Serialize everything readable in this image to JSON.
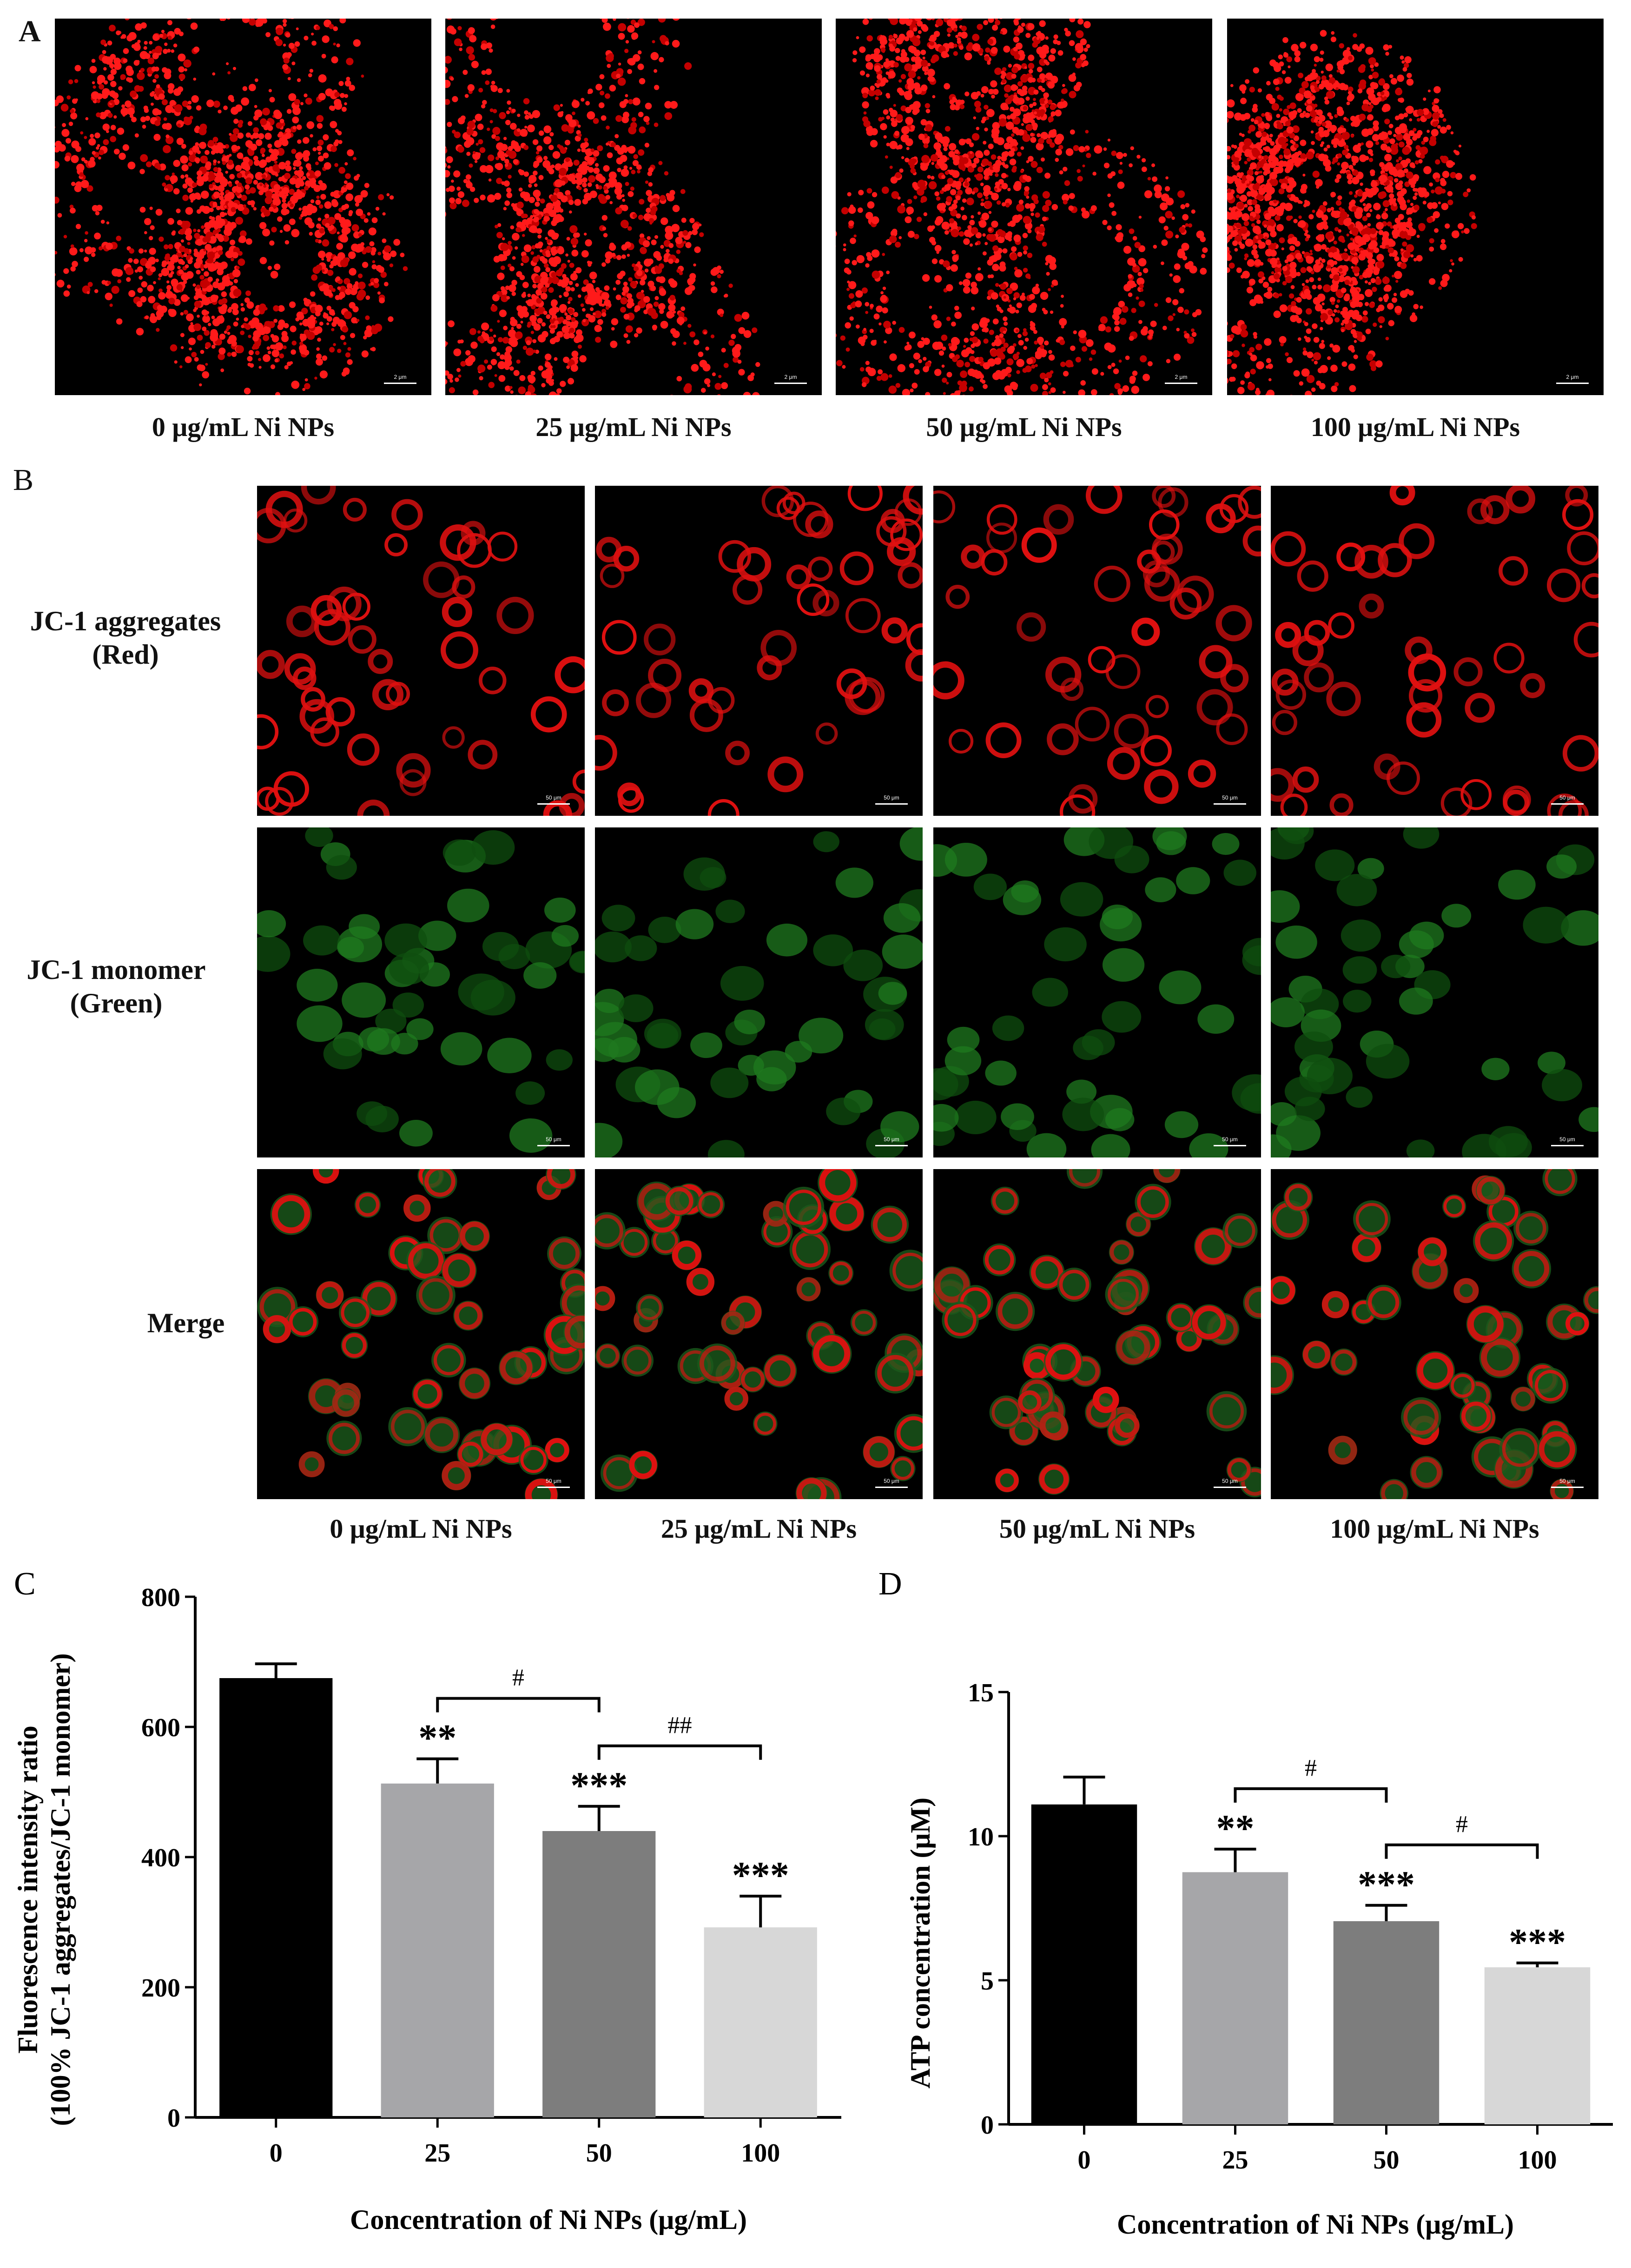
{
  "panel_A": {
    "letter": "A",
    "captions": [
      "0 μg/mL Ni NPs",
      "25 μg/mL Ni NPs",
      "50 μg/mL Ni NPs",
      "100 μg/mL Ni NPs"
    ],
    "scale_label": "2 μm"
  },
  "panel_B": {
    "letter": "B",
    "rows": [
      {
        "line1": "JC-1 aggregates",
        "line2": "(Red)"
      },
      {
        "line1": "JC-1 monomer",
        "line2": "(Green)"
      },
      {
        "line1": "Merge",
        "line2": ""
      }
    ],
    "captions": [
      "0 μg/mL Ni NPs",
      "25 μg/mL Ni NPs",
      "50 μg/mL Ni NPs",
      "100 μg/mL Ni NPs"
    ],
    "scale_label": "50 μm"
  },
  "chart_data": [
    {
      "panel": "C",
      "type": "bar",
      "categories": [
        "0",
        "25",
        "50",
        "100"
      ],
      "values": [
        675,
        513,
        440,
        292
      ],
      "errors": [
        22,
        38,
        38,
        48
      ],
      "significance": [
        "",
        "**",
        "***",
        "***"
      ],
      "brackets": [
        {
          "from": "25",
          "to": "50",
          "label": "#"
        },
        {
          "from": "50",
          "to": "100",
          "label": "##"
        }
      ],
      "colors": [
        "#000000",
        "#a6a6a9",
        "#7d7d7d",
        "#d7d7d7"
      ],
      "xlabel": "Concentration of Ni NPs (μg/mL)",
      "ylabel_line1": "Fluorescence intensity ratio",
      "ylabel_line2": "(100% JC-1 aggregates/JC-1 monomer)",
      "ylim": [
        0,
        800
      ],
      "yticks": [
        0,
        200,
        400,
        600,
        800
      ]
    },
    {
      "panel": "D",
      "type": "bar",
      "categories": [
        "0",
        "25",
        "50",
        "100"
      ],
      "values": [
        11.1,
        8.75,
        7.05,
        5.45
      ],
      "errors": [
        0.95,
        0.8,
        0.55,
        0.15
      ],
      "significance": [
        "",
        "**",
        "***",
        "***"
      ],
      "brackets": [
        {
          "from": "25",
          "to": "50",
          "label": "#"
        },
        {
          "from": "50",
          "to": "100",
          "label": "#"
        }
      ],
      "colors": [
        "#000000",
        "#a6a6a9",
        "#7d7d7d",
        "#d7d7d7"
      ],
      "xlabel": "Concentration of Ni NPs (μg/mL)",
      "ylabel_line1": "ATP concentration (μM)",
      "ylabel_line2": "",
      "ylim": [
        0,
        15
      ],
      "yticks": [
        0,
        5,
        10,
        15
      ]
    }
  ]
}
